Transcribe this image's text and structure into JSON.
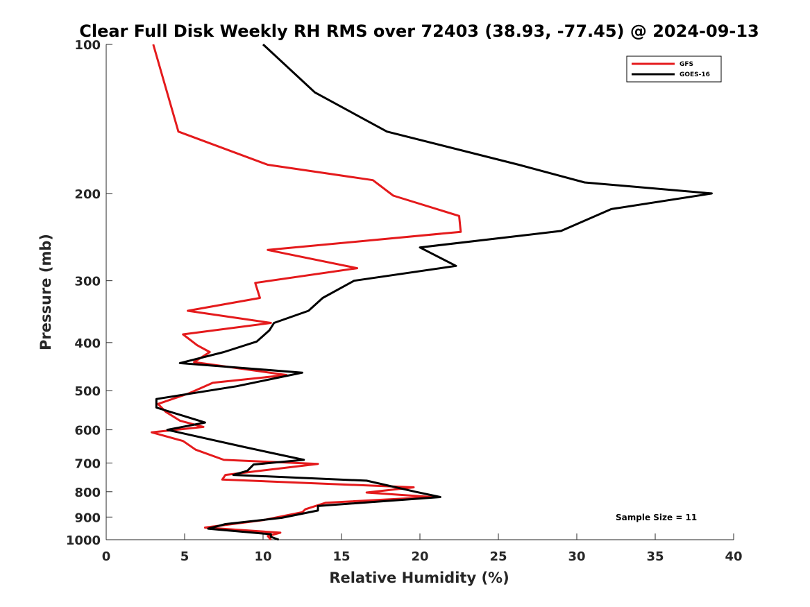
{
  "chart_data": {
    "type": "line",
    "title": "Clear Full Disk Weekly RH RMS over 72403 (38.93, -77.45) @ 2024-09-13",
    "xlabel": "Relative Humidity (%)",
    "ylabel": "Pressure (mb)",
    "xlim": [
      0,
      40
    ],
    "ylim": [
      100,
      1000
    ],
    "y_scale": "log",
    "y_reversed": true,
    "grid": false,
    "legend_position": "top-right",
    "x_ticks": [
      0,
      5,
      10,
      15,
      20,
      25,
      30,
      35,
      40
    ],
    "x_tick_labels": [
      "0",
      "5",
      "10",
      "15",
      "20",
      "25",
      "30",
      "35",
      "40"
    ],
    "y_ticks": [
      100,
      200,
      300,
      400,
      500,
      600,
      700,
      800,
      900,
      1000
    ],
    "y_tick_labels": [
      "100",
      "200",
      "300",
      "400",
      "500",
      "600",
      "700",
      "800",
      "900",
      "1000"
    ],
    "annotation": "Sample Size = 11",
    "series": [
      {
        "name": "GFS",
        "color": "#e41a1c",
        "points": [
          [
            3.0,
            100
          ],
          [
            4.6,
            150
          ],
          [
            10.3,
            175
          ],
          [
            17.0,
            188
          ],
          [
            18.3,
            202
          ],
          [
            22.5,
            222
          ],
          [
            22.6,
            239
          ],
          [
            10.3,
            260
          ],
          [
            16.0,
            283
          ],
          [
            9.5,
            303
          ],
          [
            9.8,
            325
          ],
          [
            5.2,
            345
          ],
          [
            10.5,
            365
          ],
          [
            4.9,
            385
          ],
          [
            5.8,
            405
          ],
          [
            6.6,
            418
          ],
          [
            5.6,
            438
          ],
          [
            11.5,
            465
          ],
          [
            6.8,
            482
          ],
          [
            5.3,
            506
          ],
          [
            3.3,
            532
          ],
          [
            3.8,
            552
          ],
          [
            4.7,
            575
          ],
          [
            6.2,
            592
          ],
          [
            2.9,
            607
          ],
          [
            4.9,
            632
          ],
          [
            5.7,
            658
          ],
          [
            7.5,
            690
          ],
          [
            13.5,
            703
          ],
          [
            7.6,
            740
          ],
          [
            7.4,
            756
          ],
          [
            19.6,
            784
          ],
          [
            16.6,
            803
          ],
          [
            20.8,
            820
          ],
          [
            14.0,
            842
          ],
          [
            12.7,
            868
          ],
          [
            12.5,
            880
          ],
          [
            10.0,
            913
          ],
          [
            6.3,
            945
          ],
          [
            11.1,
            968
          ],
          [
            10.3,
            983
          ],
          [
            10.5,
            1000
          ]
        ]
      },
      {
        "name": "GOES-16",
        "color": "#000000",
        "points": [
          [
            10.0,
            100
          ],
          [
            13.3,
            125
          ],
          [
            17.9,
            150
          ],
          [
            26.3,
            175
          ],
          [
            30.5,
            190
          ],
          [
            38.6,
            200
          ],
          [
            32.2,
            215
          ],
          [
            29.0,
            238
          ],
          [
            20.0,
            257
          ],
          [
            22.3,
            280
          ],
          [
            15.8,
            300
          ],
          [
            13.8,
            325
          ],
          [
            12.9,
            345
          ],
          [
            10.7,
            365
          ],
          [
            10.4,
            378
          ],
          [
            9.6,
            398
          ],
          [
            7.5,
            418
          ],
          [
            4.7,
            440
          ],
          [
            12.5,
            460
          ],
          [
            8.3,
            490
          ],
          [
            3.2,
            520
          ],
          [
            3.2,
            541
          ],
          [
            6.3,
            580
          ],
          [
            3.9,
            600
          ],
          [
            8.8,
            650
          ],
          [
            12.6,
            690
          ],
          [
            9.4,
            705
          ],
          [
            9.0,
            726
          ],
          [
            8.1,
            740
          ],
          [
            16.6,
            760
          ],
          [
            19.7,
            800
          ],
          [
            21.3,
            820
          ],
          [
            16.3,
            842
          ],
          [
            13.5,
            855
          ],
          [
            13.5,
            873
          ],
          [
            11.2,
            903
          ],
          [
            7.6,
            930
          ],
          [
            6.5,
            950
          ],
          [
            10.5,
            975
          ],
          [
            10.5,
            987
          ],
          [
            11.0,
            1000
          ]
        ]
      }
    ]
  }
}
